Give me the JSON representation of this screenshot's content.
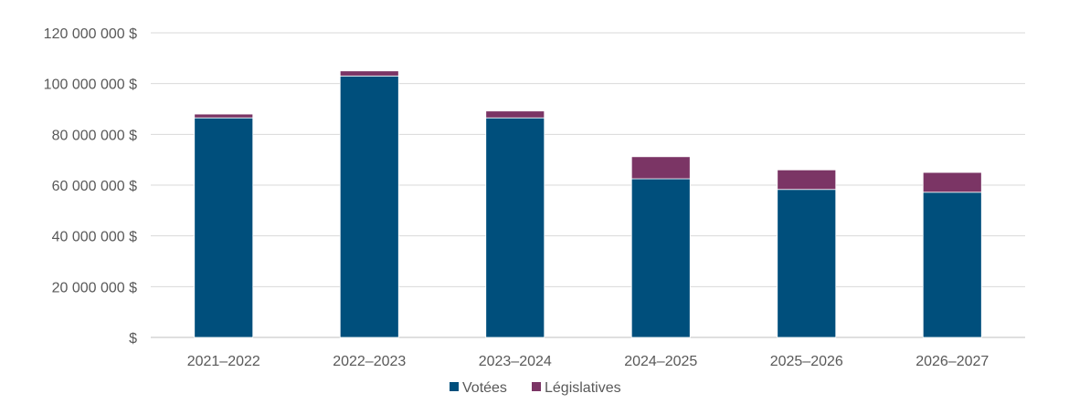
{
  "chart_data": {
    "type": "bar",
    "stacked": true,
    "categories": [
      "2021–2022",
      "2022–2023",
      "2023–2024",
      "2024–2025",
      "2025–2026",
      "2026–2027"
    ],
    "series": [
      {
        "name": "Votées",
        "color": "#004f7c",
        "values": [
          86500000,
          103000000,
          86500000,
          62500000,
          58300000,
          57200000
        ]
      },
      {
        "name": "Législatives",
        "color": "#7b3565",
        "values": [
          1500000,
          2000000,
          2700000,
          8700000,
          7700000,
          7800000
        ]
      }
    ],
    "ylim": [
      0,
      120000000
    ],
    "yticks": [
      0,
      20000000,
      40000000,
      60000000,
      80000000,
      100000000,
      120000000
    ],
    "ytick_labels": [
      "$",
      "20 000 000 $",
      "40 000 000 $",
      "60 000 000 $",
      "80 000 000 $",
      "100 000 000 $",
      "120 000 000 $"
    ],
    "grid": true,
    "legend_position": "bottom"
  }
}
